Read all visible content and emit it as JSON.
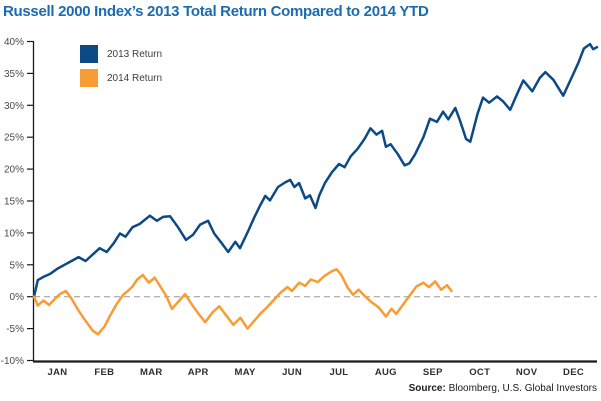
{
  "title": "Russell 2000 Index’s 2013 Total Return Compared to 2014 YTD",
  "colors": {
    "title": "#1b6cae",
    "series_2013": "#0d4a85",
    "series_2014": "#f89c35",
    "axis": "#1a1a1a",
    "zero_line": "#999999",
    "tick_label": "#4a4a4a",
    "month_label": "#2f2f2f",
    "background": "#ffffff"
  },
  "legend": {
    "items": [
      {
        "label": "2013 Return",
        "color": "#0d4a85"
      },
      {
        "label": "2014 Return",
        "color": "#f89c35"
      }
    ]
  },
  "source": {
    "label": "Source:",
    "text": " Bloomberg, U.S. Global Investors"
  },
  "chart_data": {
    "type": "line",
    "title": "Russell 2000 Index’s 2013 Total Return Compared to 2014 YTD",
    "xlabel": "",
    "ylabel": "",
    "x_unit": "months (0 = Jan 1, 12 = Dec 31)",
    "y_unit": "percent total return",
    "xlim": [
      0,
      12
    ],
    "ylim": [
      -10,
      40
    ],
    "grid": false,
    "zero_line_style": "dashed",
    "legend_position": "top-left",
    "x_tick_labels": [
      "JAN",
      "FEB",
      "MAR",
      "APR",
      "MAY",
      "JUN",
      "JUL",
      "AUG",
      "SEP",
      "OCT",
      "NOV",
      "DEC"
    ],
    "y_ticks": [
      40,
      35,
      30,
      25,
      20,
      15,
      10,
      5,
      0,
      -5,
      -10
    ],
    "y_tick_labels": [
      "40%",
      "35%",
      "30%",
      "25%",
      "20%",
      "15%",
      "10%",
      "5%",
      "0%",
      "-5%",
      "-10%"
    ],
    "series": [
      {
        "name": "2013 Return",
        "color": "#0d4a85",
        "points": [
          [
            0,
            0
          ],
          [
            0.08,
            2.6
          ],
          [
            0.2,
            3.1
          ],
          [
            0.35,
            3.6
          ],
          [
            0.5,
            4.4
          ],
          [
            0.65,
            5.0
          ],
          [
            0.8,
            5.6
          ],
          [
            0.95,
            6.2
          ],
          [
            1.1,
            5.6
          ],
          [
            1.25,
            6.6
          ],
          [
            1.4,
            7.6
          ],
          [
            1.55,
            7.0
          ],
          [
            1.7,
            8.4
          ],
          [
            1.83,
            9.9
          ],
          [
            1.95,
            9.4
          ],
          [
            2.1,
            10.9
          ],
          [
            2.25,
            11.4
          ],
          [
            2.47,
            12.7
          ],
          [
            2.62,
            11.9
          ],
          [
            2.75,
            12.5
          ],
          [
            2.9,
            12.6
          ],
          [
            3.07,
            10.9
          ],
          [
            3.24,
            8.9
          ],
          [
            3.39,
            9.7
          ],
          [
            3.54,
            11.3
          ],
          [
            3.71,
            11.9
          ],
          [
            3.84,
            9.9
          ],
          [
            4.01,
            8.3
          ],
          [
            4.14,
            7.0
          ],
          [
            4.29,
            8.6
          ],
          [
            4.39,
            7.6
          ],
          [
            4.56,
            10.2
          ],
          [
            4.7,
            12.5
          ],
          [
            4.82,
            14.3
          ],
          [
            4.93,
            15.8
          ],
          [
            5.03,
            15.1
          ],
          [
            5.2,
            17.2
          ],
          [
            5.35,
            17.9
          ],
          [
            5.46,
            18.3
          ],
          [
            5.55,
            17.2
          ],
          [
            5.65,
            17.8
          ],
          [
            5.78,
            15.4
          ],
          [
            5.88,
            15.9
          ],
          [
            6.0,
            13.9
          ],
          [
            6.08,
            15.9
          ],
          [
            6.2,
            17.8
          ],
          [
            6.35,
            19.5
          ],
          [
            6.5,
            20.8
          ],
          [
            6.62,
            20.3
          ],
          [
            6.75,
            22.0
          ],
          [
            6.9,
            23.2
          ],
          [
            7.05,
            24.8
          ],
          [
            7.17,
            26.4
          ],
          [
            7.3,
            25.4
          ],
          [
            7.42,
            26.0
          ],
          [
            7.5,
            23.5
          ],
          [
            7.6,
            23.9
          ],
          [
            7.75,
            22.4
          ],
          [
            7.9,
            20.6
          ],
          [
            8.0,
            20.9
          ],
          [
            8.12,
            22.3
          ],
          [
            8.3,
            25.0
          ],
          [
            8.44,
            27.9
          ],
          [
            8.59,
            27.4
          ],
          [
            8.72,
            29.0
          ],
          [
            8.83,
            27.8
          ],
          [
            8.98,
            29.6
          ],
          [
            9.08,
            27.6
          ],
          [
            9.21,
            24.7
          ],
          [
            9.3,
            24.3
          ],
          [
            9.45,
            28.6
          ],
          [
            9.57,
            31.2
          ],
          [
            9.7,
            30.4
          ],
          [
            9.87,
            31.4
          ],
          [
            10.0,
            30.6
          ],
          [
            10.15,
            29.3
          ],
          [
            10.3,
            31.8
          ],
          [
            10.43,
            33.9
          ],
          [
            10.62,
            32.2
          ],
          [
            10.78,
            34.3
          ],
          [
            10.9,
            35.2
          ],
          [
            11.07,
            34.0
          ],
          [
            11.28,
            31.5
          ],
          [
            11.45,
            34.2
          ],
          [
            11.6,
            36.6
          ],
          [
            11.72,
            38.9
          ],
          [
            11.85,
            39.6
          ],
          [
            11.92,
            38.8
          ],
          [
            12,
            39.1
          ]
        ]
      },
      {
        "name": "2014 Return",
        "color": "#f89c35",
        "points": [
          [
            0,
            0
          ],
          [
            0.08,
            -1.4
          ],
          [
            0.2,
            -0.6
          ],
          [
            0.32,
            -1.3
          ],
          [
            0.45,
            -0.3
          ],
          [
            0.55,
            0.4
          ],
          [
            0.68,
            0.9
          ],
          [
            0.8,
            -0.3
          ],
          [
            0.95,
            -2.2
          ],
          [
            1.1,
            -3.8
          ],
          [
            1.25,
            -5.3
          ],
          [
            1.36,
            -5.9
          ],
          [
            1.5,
            -4.7
          ],
          [
            1.62,
            -3.0
          ],
          [
            1.75,
            -1.3
          ],
          [
            1.9,
            0.3
          ],
          [
            2.0,
            0.9
          ],
          [
            2.1,
            1.6
          ],
          [
            2.2,
            2.7
          ],
          [
            2.32,
            3.4
          ],
          [
            2.45,
            2.2
          ],
          [
            2.57,
            3.0
          ],
          [
            2.7,
            1.5
          ],
          [
            2.82,
            0.1
          ],
          [
            2.94,
            -1.9
          ],
          [
            3.1,
            -0.6
          ],
          [
            3.22,
            0.4
          ],
          [
            3.38,
            -1.4
          ],
          [
            3.5,
            -2.6
          ],
          [
            3.65,
            -4.0
          ],
          [
            3.8,
            -2.5
          ],
          [
            3.95,
            -1.5
          ],
          [
            4.1,
            -3.0
          ],
          [
            4.25,
            -4.4
          ],
          [
            4.4,
            -3.3
          ],
          [
            4.55,
            -5.0
          ],
          [
            4.68,
            -3.9
          ],
          [
            4.82,
            -2.7
          ],
          [
            4.95,
            -1.8
          ],
          [
            5.1,
            -0.6
          ],
          [
            5.25,
            0.6
          ],
          [
            5.4,
            1.5
          ],
          [
            5.5,
            0.9
          ],
          [
            5.65,
            2.2
          ],
          [
            5.78,
            1.7
          ],
          [
            5.9,
            2.7
          ],
          [
            6.05,
            2.3
          ],
          [
            6.2,
            3.3
          ],
          [
            6.35,
            4.0
          ],
          [
            6.45,
            4.3
          ],
          [
            6.55,
            3.4
          ],
          [
            6.68,
            1.5
          ],
          [
            6.8,
            0.3
          ],
          [
            6.92,
            1.1
          ],
          [
            7.05,
            0.1
          ],
          [
            7.2,
            -0.9
          ],
          [
            7.35,
            -1.7
          ],
          [
            7.5,
            -3.1
          ],
          [
            7.62,
            -1.9
          ],
          [
            7.72,
            -2.7
          ],
          [
            7.85,
            -1.4
          ],
          [
            8.0,
            0.1
          ],
          [
            8.15,
            1.6
          ],
          [
            8.3,
            2.2
          ],
          [
            8.42,
            1.5
          ],
          [
            8.55,
            2.4
          ],
          [
            8.68,
            1.1
          ],
          [
            8.8,
            1.8
          ],
          [
            8.9,
            0.9
          ]
        ]
      }
    ]
  }
}
